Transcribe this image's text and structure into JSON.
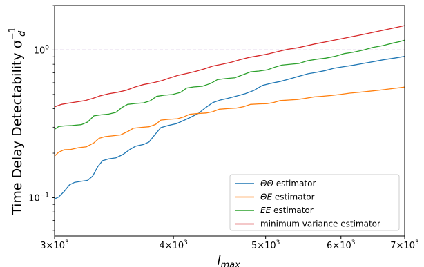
{
  "chart_data": {
    "type": "line",
    "xscale": "log",
    "yscale": "log",
    "xlim": [
      3000,
      7000
    ],
    "ylim": [
      0.055,
      2.0
    ],
    "xlabel": "l",
    "xlabel_sub": "max",
    "ylabel": "Time Delay Detectability σ",
    "ylabel_sub": "d",
    "ylabel_sup": "−1",
    "x_ticks": [
      {
        "value": 3000,
        "mant": "3",
        "base": "10",
        "exp": "3"
      },
      {
        "value": 4000,
        "mant": "4",
        "base": "10",
        "exp": "3"
      },
      {
        "value": 5000,
        "mant": "5",
        "base": "10",
        "exp": "3"
      },
      {
        "value": 6000,
        "mant": "6",
        "base": "10",
        "exp": "3"
      },
      {
        "value": 7000,
        "mant": "7",
        "base": "10",
        "exp": "3"
      }
    ],
    "y_ticks": [
      {
        "value": 0.1,
        "base": "10",
        "exp": "−1"
      },
      {
        "value": 1.0,
        "base": "10",
        "exp": "0"
      }
    ],
    "reference_line": {
      "y": 1.0,
      "color": "#9467bd",
      "style": "dashed"
    },
    "legend": {
      "placement": "lower-right"
    },
    "series": [
      {
        "name": "ΘΘ estimator",
        "name_parts": [
          {
            "t": "ΘΘ",
            "i": true
          },
          {
            "t": " estimator",
            "i": false
          }
        ],
        "color": "#1f77b4",
        "points": [
          [
            3000,
            0.098
          ],
          [
            3030,
            0.101
          ],
          [
            3070,
            0.11
          ],
          [
            3110,
            0.122
          ],
          [
            3150,
            0.127
          ],
          [
            3200,
            0.129
          ],
          [
            3250,
            0.131
          ],
          [
            3290,
            0.14
          ],
          [
            3330,
            0.162
          ],
          [
            3370,
            0.178
          ],
          [
            3420,
            0.183
          ],
          [
            3480,
            0.186
          ],
          [
            3540,
            0.196
          ],
          [
            3600,
            0.212
          ],
          [
            3650,
            0.223
          ],
          [
            3720,
            0.229
          ],
          [
            3770,
            0.238
          ],
          [
            3830,
            0.27
          ],
          [
            3880,
            0.298
          ],
          [
            3950,
            0.308
          ],
          [
            4030,
            0.317
          ],
          [
            4100,
            0.333
          ],
          [
            4170,
            0.35
          ],
          [
            4250,
            0.372
          ],
          [
            4320,
            0.405
          ],
          [
            4400,
            0.44
          ],
          [
            4480,
            0.458
          ],
          [
            4560,
            0.47
          ],
          [
            4660,
            0.487
          ],
          [
            4760,
            0.506
          ],
          [
            4860,
            0.532
          ],
          [
            4960,
            0.575
          ],
          [
            5070,
            0.595
          ],
          [
            5180,
            0.612
          ],
          [
            5300,
            0.637
          ],
          [
            5420,
            0.664
          ],
          [
            5540,
            0.69
          ],
          [
            5660,
            0.706
          ],
          [
            5780,
            0.726
          ],
          [
            5900,
            0.752
          ],
          [
            6040,
            0.771
          ],
          [
            6180,
            0.788
          ],
          [
            6330,
            0.81
          ],
          [
            6500,
            0.835
          ],
          [
            6660,
            0.86
          ],
          [
            6830,
            0.881
          ],
          [
            7000,
            0.905
          ]
        ]
      },
      {
        "name": "ΘE estimator",
        "name_parts": [
          {
            "t": "ΘE",
            "i": true
          },
          {
            "t": " estimator",
            "i": false
          }
        ],
        "color": "#ff7f0e",
        "points": [
          [
            3000,
            0.191
          ],
          [
            3030,
            0.203
          ],
          [
            3070,
            0.211
          ],
          [
            3120,
            0.212
          ],
          [
            3180,
            0.218
          ],
          [
            3240,
            0.221
          ],
          [
            3300,
            0.235
          ],
          [
            3340,
            0.252
          ],
          [
            3390,
            0.259
          ],
          [
            3450,
            0.262
          ],
          [
            3520,
            0.266
          ],
          [
            3580,
            0.28
          ],
          [
            3630,
            0.295
          ],
          [
            3700,
            0.299
          ],
          [
            3770,
            0.302
          ],
          [
            3830,
            0.313
          ],
          [
            3880,
            0.335
          ],
          [
            3950,
            0.339
          ],
          [
            4040,
            0.342
          ],
          [
            4100,
            0.352
          ],
          [
            4160,
            0.367
          ],
          [
            4240,
            0.371
          ],
          [
            4330,
            0.374
          ],
          [
            4400,
            0.382
          ],
          [
            4470,
            0.397
          ],
          [
            4560,
            0.401
          ],
          [
            4660,
            0.404
          ],
          [
            4740,
            0.413
          ],
          [
            4820,
            0.428
          ],
          [
            4920,
            0.431
          ],
          [
            5020,
            0.433
          ],
          [
            5100,
            0.441
          ],
          [
            5180,
            0.454
          ],
          [
            5290,
            0.458
          ],
          [
            5400,
            0.462
          ],
          [
            5500,
            0.47
          ],
          [
            5620,
            0.481
          ],
          [
            5740,
            0.486
          ],
          [
            5860,
            0.492
          ],
          [
            5990,
            0.5
          ],
          [
            6130,
            0.51
          ],
          [
            6270,
            0.517
          ],
          [
            6420,
            0.525
          ],
          [
            6580,
            0.534
          ],
          [
            6750,
            0.545
          ],
          [
            6880,
            0.553
          ],
          [
            7000,
            0.561
          ]
        ]
      },
      {
        "name": "EE estimator",
        "name_parts": [
          {
            "t": "EE",
            "i": true
          },
          {
            "t": " estimator",
            "i": false
          }
        ],
        "color": "#2ca02c",
        "points": [
          [
            3000,
            0.29
          ],
          [
            3030,
            0.303
          ],
          [
            3070,
            0.306
          ],
          [
            3130,
            0.308
          ],
          [
            3200,
            0.312
          ],
          [
            3250,
            0.325
          ],
          [
            3300,
            0.358
          ],
          [
            3360,
            0.364
          ],
          [
            3420,
            0.368
          ],
          [
            3480,
            0.378
          ],
          [
            3530,
            0.407
          ],
          [
            3580,
            0.428
          ],
          [
            3650,
            0.434
          ],
          [
            3720,
            0.438
          ],
          [
            3780,
            0.452
          ],
          [
            3840,
            0.485
          ],
          [
            3910,
            0.494
          ],
          [
            3990,
            0.499
          ],
          [
            4070,
            0.516
          ],
          [
            4130,
            0.552
          ],
          [
            4200,
            0.562
          ],
          [
            4290,
            0.568
          ],
          [
            4380,
            0.594
          ],
          [
            4450,
            0.63
          ],
          [
            4540,
            0.64
          ],
          [
            4640,
            0.648
          ],
          [
            4740,
            0.682
          ],
          [
            4820,
            0.711
          ],
          [
            4920,
            0.72
          ],
          [
            5020,
            0.733
          ],
          [
            5100,
            0.761
          ],
          [
            5200,
            0.79
          ],
          [
            5310,
            0.8
          ],
          [
            5420,
            0.81
          ],
          [
            5530,
            0.845
          ],
          [
            5660,
            0.866
          ],
          [
            5780,
            0.88
          ],
          [
            5910,
            0.905
          ],
          [
            6050,
            0.945
          ],
          [
            6180,
            0.965
          ],
          [
            6330,
            0.998
          ],
          [
            6480,
            1.04
          ],
          [
            6640,
            1.07
          ],
          [
            6800,
            1.112
          ],
          [
            6920,
            1.14
          ],
          [
            7000,
            1.165
          ]
        ]
      },
      {
        "name": "minimum variance estimator",
        "name_parts": [
          {
            "t": "minimum variance estimator",
            "i": false
          }
        ],
        "color": "#d62728",
        "points": [
          [
            3000,
            0.412
          ],
          [
            3050,
            0.428
          ],
          [
            3100,
            0.436
          ],
          [
            3160,
            0.444
          ],
          [
            3230,
            0.454
          ],
          [
            3290,
            0.47
          ],
          [
            3350,
            0.489
          ],
          [
            3420,
            0.505
          ],
          [
            3500,
            0.518
          ],
          [
            3570,
            0.534
          ],
          [
            3640,
            0.56
          ],
          [
            3720,
            0.583
          ],
          [
            3810,
            0.6
          ],
          [
            3890,
            0.62
          ],
          [
            3960,
            0.645
          ],
          [
            4040,
            0.672
          ],
          [
            4130,
            0.693
          ],
          [
            4220,
            0.716
          ],
          [
            4310,
            0.744
          ],
          [
            4400,
            0.778
          ],
          [
            4500,
            0.8
          ],
          [
            4600,
            0.825
          ],
          [
            4700,
            0.86
          ],
          [
            4810,
            0.892
          ],
          [
            4920,
            0.915
          ],
          [
            5040,
            0.943
          ],
          [
            5150,
            0.975
          ],
          [
            5270,
            1.01
          ],
          [
            5400,
            1.034
          ],
          [
            5520,
            1.067
          ],
          [
            5650,
            1.103
          ],
          [
            5780,
            1.134
          ],
          [
            5920,
            1.17
          ],
          [
            6060,
            1.205
          ],
          [
            6210,
            1.243
          ],
          [
            6360,
            1.282
          ],
          [
            6520,
            1.325
          ],
          [
            6680,
            1.37
          ],
          [
            6840,
            1.416
          ],
          [
            7000,
            1.462
          ]
        ]
      }
    ]
  }
}
